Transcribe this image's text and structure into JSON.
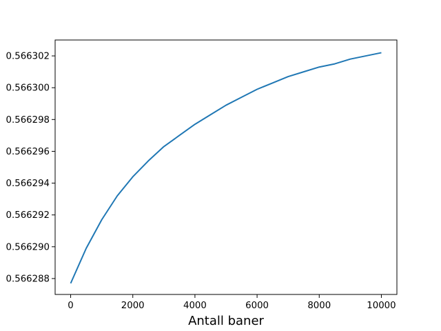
{
  "chart_data": {
    "type": "line",
    "title": "",
    "xlabel": "Antall baner",
    "ylabel": "",
    "xlim": [
      -500,
      10500
    ],
    "ylim": [
      0.566287,
      0.566303
    ],
    "xticks": [
      0,
      2000,
      4000,
      6000,
      8000,
      10000
    ],
    "xtick_labels": [
      "0",
      "2000",
      "4000",
      "6000",
      "8000",
      "10000"
    ],
    "yticks": [
      0.566288,
      0.56629,
      0.566292,
      0.566294,
      0.566296,
      0.566298,
      0.5663,
      0.566302
    ],
    "ytick_labels": [
      "0.566288",
      "0.566290",
      "0.566292",
      "0.566294",
      "0.566296",
      "0.566298",
      "0.566300",
      "0.566302"
    ],
    "grid": false,
    "legend": "none",
    "series": [
      {
        "color": "#1f77b4",
        "x": [
          0,
          500,
          1000,
          1500,
          2000,
          2500,
          3000,
          3500,
          4000,
          4500,
          5000,
          5500,
          6000,
          6500,
          7000,
          7500,
          8000,
          8500,
          9000,
          9500,
          10000
        ],
        "y": [
          0.5662877,
          0.5662899,
          0.5662917,
          0.5662932,
          0.5662944,
          0.5662954,
          0.5662963,
          0.566297,
          0.5662977,
          0.5662983,
          0.5662989,
          0.5662994,
          0.5662999,
          0.5663003,
          0.5663007,
          0.566301,
          0.5663013,
          0.5663015,
          0.5663018,
          0.566302,
          0.5663022
        ]
      }
    ]
  }
}
